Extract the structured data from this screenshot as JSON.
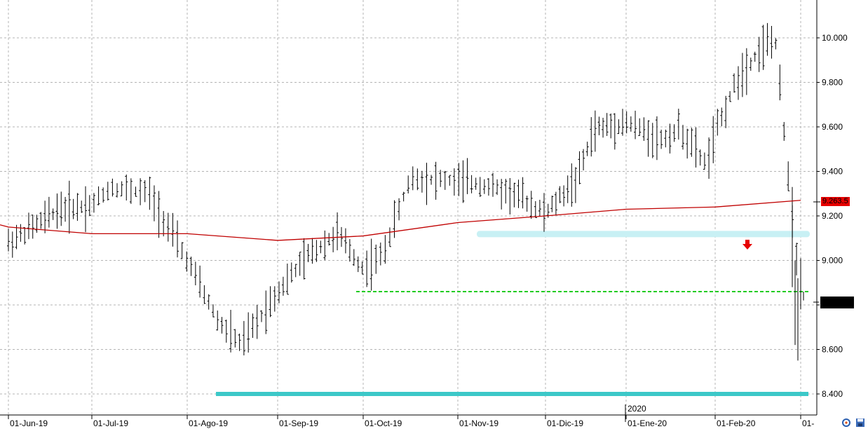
{
  "chart_data": {
    "type": "ohlc-bar",
    "title": "",
    "xlabel": "",
    "ylabel": "",
    "ylim": [
      8380,
      10160
    ],
    "y_ticks": [
      8400,
      8600,
      8800,
      9000,
      9200,
      9400,
      9600,
      9800,
      10000
    ],
    "y_tick_labels": [
      "8.400",
      "8.600",
      "",
      "9.000",
      "9.200",
      "9.400",
      "9.600",
      "9.800",
      "10.000"
    ],
    "x_tick_labels": [
      "01-Jun-19",
      "01-Jul-19",
      "01-Ago-19",
      "01-Sep-19",
      "01-Oct-19",
      "01-Nov-19",
      "01-Dic-19",
      "01-Ene-20",
      "01-Feb-20",
      "01-"
    ],
    "year_label": "2020",
    "grid": true,
    "last_price_label": "9.263.5",
    "moving_average": [
      {
        "x": "01-Jun-19",
        "y": 9150
      },
      {
        "x": "01-Jul-19",
        "y": 9120
      },
      {
        "x": "01-Ago-19",
        "y": 9120
      },
      {
        "x": "01-Sep-19",
        "y": 9090
      },
      {
        "x": "01-Oct-19",
        "y": 9110
      },
      {
        "x": "01-Nov-19",
        "y": 9170
      },
      {
        "x": "01-Dic-19",
        "y": 9200
      },
      {
        "x": "01-Ene-20",
        "y": 9230
      },
      {
        "x": "01-Feb-20",
        "y": 9240
      },
      {
        "x": "01-",
        "y": 9270
      }
    ],
    "horizontal_levels": [
      {
        "name": "support",
        "y": 8400,
        "color": "#3cc8c8",
        "style": "solid-thick"
      },
      {
        "name": "dashed-support",
        "y": 8860,
        "color": "#22cc22",
        "style": "dashed"
      },
      {
        "name": "resistance-zone",
        "y": 9120,
        "color": "#c8f0f4",
        "style": "band"
      }
    ],
    "colors": {
      "bars": "#000000",
      "moving_average": "#c00000",
      "grid": "#b4b4b4",
      "arrow": "#e60000",
      "current_marker": "#000000"
    }
  }
}
